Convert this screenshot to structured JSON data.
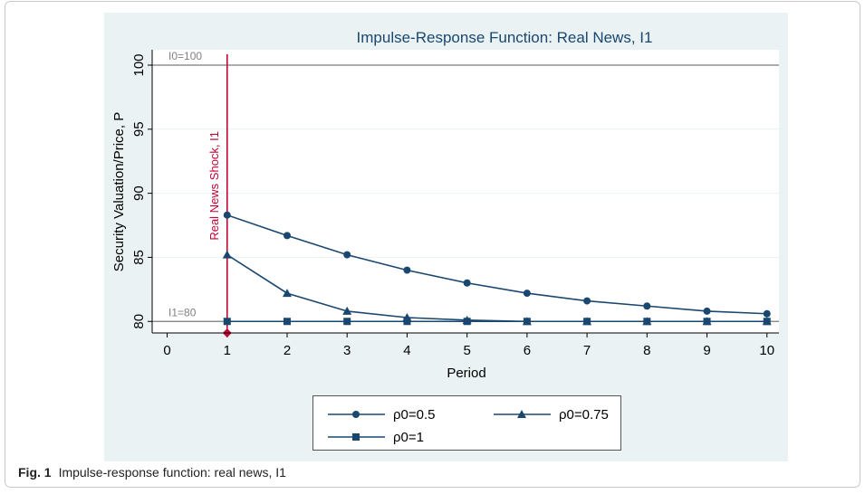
{
  "chart_data": {
    "type": "line",
    "title": "Impulse-Response Function: Real News, I1",
    "xlabel": "Period",
    "ylabel": "Security Valuation/Price, P",
    "x": [
      1,
      2,
      3,
      4,
      5,
      6,
      7,
      8,
      9,
      10
    ],
    "series": [
      {
        "name": "ρ0=0.5",
        "color": "#1a476f",
        "marker": "circle",
        "values": [
          88.3,
          86.7,
          85.2,
          84.0,
          83.0,
          82.2,
          81.6,
          81.2,
          80.8,
          80.6
        ]
      },
      {
        "name": "ρ0=0.75",
        "color": "#1a476f",
        "marker": "triangle",
        "values": [
          85.2,
          82.2,
          80.8,
          80.3,
          80.1,
          80.0,
          80.0,
          80.0,
          80.0,
          80.0
        ]
      },
      {
        "name": "ρ0=1",
        "color": "#1a476f",
        "marker": "square",
        "values": [
          80,
          80,
          80,
          80,
          80,
          80,
          80,
          80,
          80,
          80
        ]
      }
    ],
    "xlim": [
      -0.25,
      10.2
    ],
    "ylim": [
      79.1,
      101.2
    ],
    "xticks": [
      0,
      1,
      2,
      3,
      4,
      5,
      6,
      7,
      8,
      9,
      10
    ],
    "yticks": [
      80,
      85,
      90,
      95,
      100
    ],
    "grid": true,
    "hlines": [
      {
        "y": 100,
        "label": "I0=100"
      },
      {
        "y": 80,
        "label": "I1=80"
      }
    ],
    "vline": {
      "x": 1,
      "label": "Real News Shock, I1",
      "color": "#c10534"
    },
    "legend": "bottom"
  },
  "caption": {
    "label": "Fig. 1",
    "text": "Impulse-response function: real news, I1"
  }
}
